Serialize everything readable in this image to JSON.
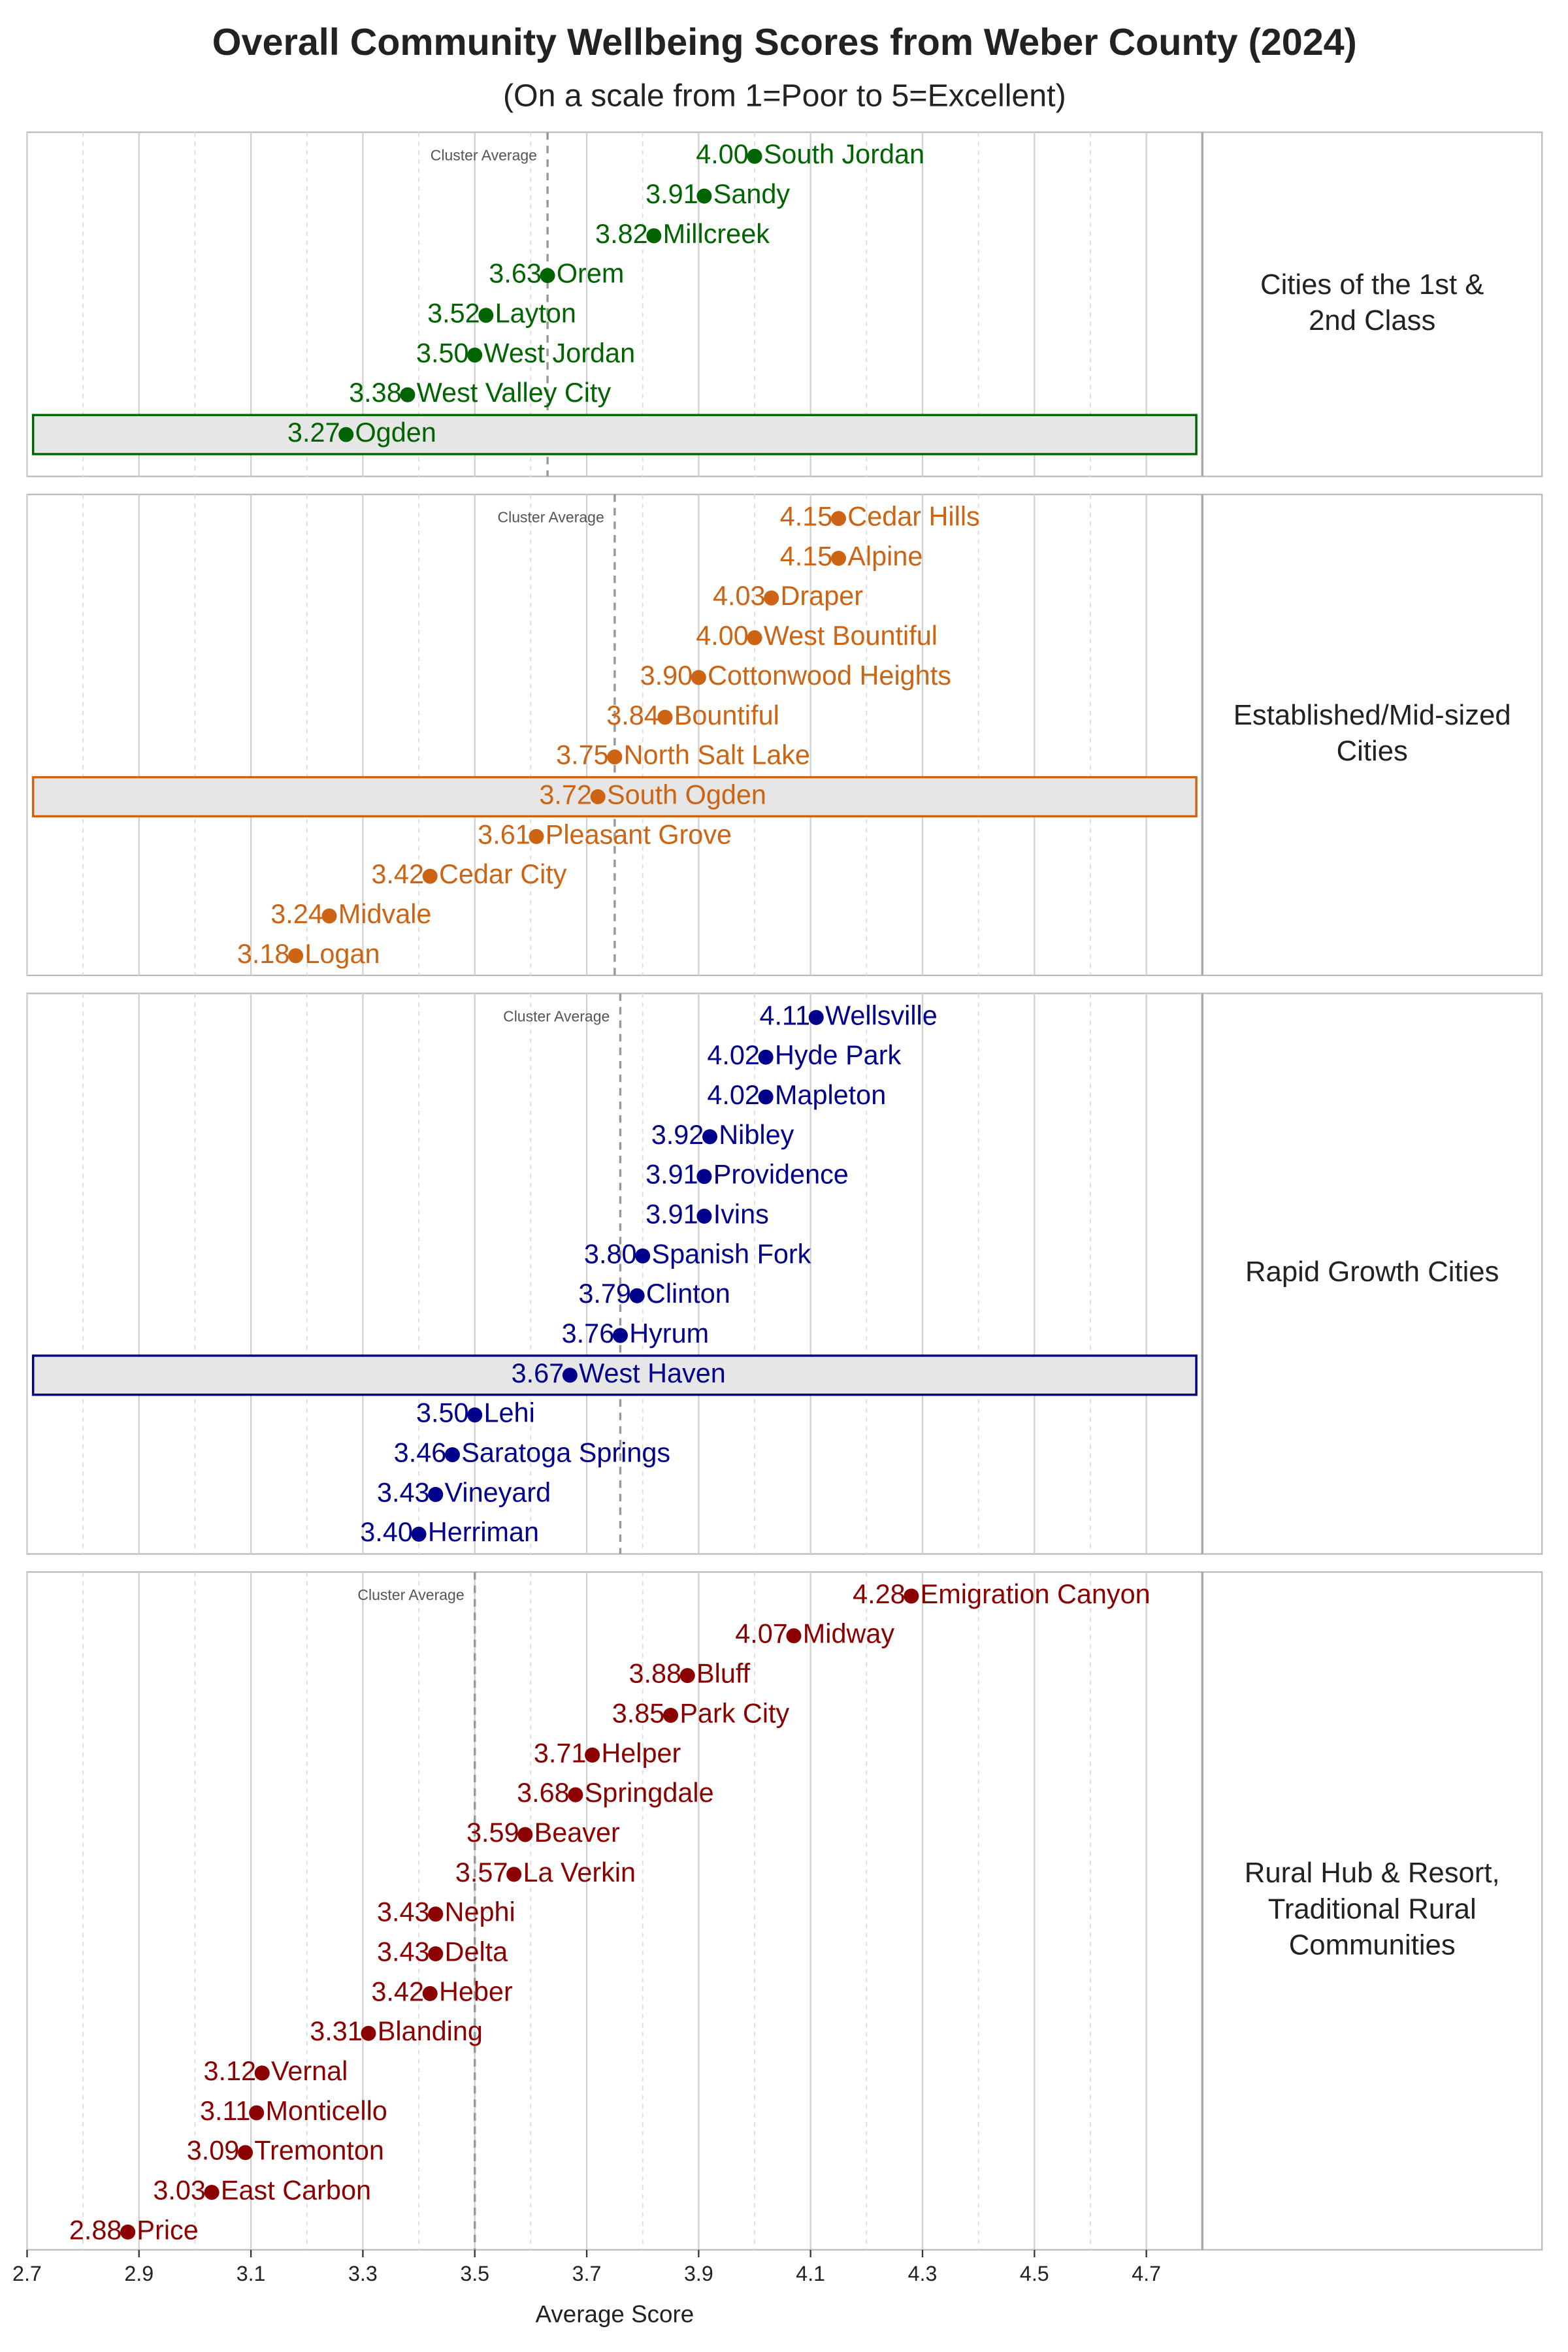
{
  "chart_data": {
    "type": "dot",
    "title": "Overall Community Wellbeing Scores from Weber County (2024)",
    "subtitle": "(On a scale from 1=Poor to 5=Excellent)",
    "xlabel": "Average Score",
    "xlim": [
      2.7,
      4.8
    ],
    "xticks": [
      2.7,
      2.9,
      3.1,
      3.3,
      3.5,
      3.7,
      3.9,
      4.1,
      4.3,
      4.5,
      4.7
    ],
    "xminor": [
      2.8,
      3.0,
      3.2,
      3.4,
      3.6,
      3.8,
      4.0,
      4.2,
      4.4,
      4.6
    ],
    "grid": true,
    "cluster_average_label": "Cluster Average",
    "panels": [
      {
        "name": [
          "Cities of the 1st &",
          "2nd Class"
        ],
        "color": "#006400",
        "cluster_average": 3.63,
        "highlight": "Ogden",
        "categories": [
          "South Jordan",
          "Sandy",
          "Millcreek",
          "Orem",
          "Layton",
          "West Jordan",
          "West Valley City",
          "Ogden"
        ],
        "values": [
          4.0,
          3.91,
          3.82,
          3.63,
          3.52,
          3.5,
          3.38,
          3.27
        ],
        "value_labels": [
          "4.00",
          "3.91",
          "3.82",
          "3.63",
          "3.52",
          "3.50",
          "3.38",
          "3.27"
        ]
      },
      {
        "name": [
          "Established/Mid-sized",
          "Cities"
        ],
        "color": "#cc6414",
        "cluster_average": 3.75,
        "highlight": "South Ogden",
        "categories": [
          "Cedar Hills",
          "Alpine",
          "Draper",
          "West Bountiful",
          "Cottonwood Heights",
          "Bountiful",
          "North Salt Lake",
          "South Ogden",
          "Pleasant Grove",
          "Cedar City",
          "Midvale",
          "Logan"
        ],
        "values": [
          4.15,
          4.15,
          4.03,
          4.0,
          3.9,
          3.84,
          3.75,
          3.72,
          3.61,
          3.42,
          3.24,
          3.18
        ],
        "value_labels": [
          "4.15",
          "4.15",
          "4.03",
          "4.00",
          "3.90",
          "3.84",
          "3.75",
          "3.72",
          "3.61",
          "3.42",
          "3.24",
          "3.18"
        ]
      },
      {
        "name": [
          "Rapid Growth Cities"
        ],
        "color": "#00008b",
        "cluster_average": 3.76,
        "highlight": "West Haven",
        "categories": [
          "Wellsville",
          "Hyde Park",
          "Mapleton",
          "Nibley",
          "Providence",
          "Ivins",
          "Spanish Fork",
          "Clinton",
          "Hyrum",
          "West Haven",
          "Lehi",
          "Saratoga Springs",
          "Vineyard",
          "Herriman"
        ],
        "values": [
          4.11,
          4.02,
          4.02,
          3.92,
          3.91,
          3.91,
          3.8,
          3.79,
          3.76,
          3.67,
          3.5,
          3.46,
          3.43,
          3.4
        ],
        "value_labels": [
          "4.11",
          "4.02",
          "4.02",
          "3.92",
          "3.91",
          "3.91",
          "3.80",
          "3.79",
          "3.76",
          "3.67",
          "3.50",
          "3.46",
          "3.43",
          "3.40"
        ]
      },
      {
        "name": [
          "Rural Hub & Resort,",
          "Traditional Rural",
          "Communities"
        ],
        "color": "#8b0000",
        "cluster_average": 3.5,
        "highlight": null,
        "categories": [
          "Emigration Canyon",
          "Midway",
          "Bluff",
          "Park City",
          "Helper",
          "Springdale",
          "Beaver",
          "La Verkin",
          "Nephi",
          "Delta",
          "Heber",
          "Blanding",
          "Vernal",
          "Monticello",
          "Tremonton",
          "East Carbon",
          "Price"
        ],
        "values": [
          4.28,
          4.07,
          3.88,
          3.85,
          3.71,
          3.68,
          3.59,
          3.57,
          3.43,
          3.43,
          3.42,
          3.31,
          3.12,
          3.11,
          3.09,
          3.03,
          2.88
        ],
        "value_labels": [
          "4.28",
          "4.07",
          "3.88",
          "3.85",
          "3.71",
          "3.68",
          "3.59",
          "3.57",
          "3.43",
          "3.43",
          "3.42",
          "3.31",
          "3.12",
          "3.11",
          "3.09",
          "3.03",
          "2.88"
        ]
      }
    ]
  }
}
